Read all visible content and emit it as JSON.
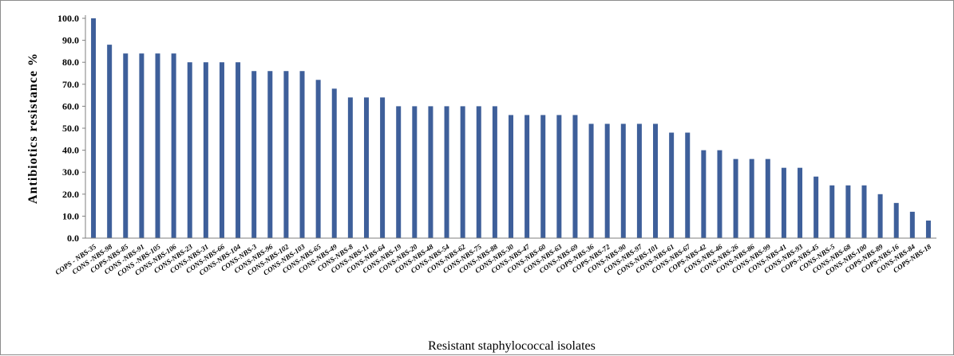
{
  "chart_data": {
    "type": "bar",
    "title": "",
    "xlabel": "Resistant staphylococcal isolates",
    "ylabel": "Antibiotics resistance %",
    "ylim": [
      0,
      100
    ],
    "yticks": [
      "0.0",
      "10.0",
      "20.0",
      "30.0",
      "40.0",
      "50.0",
      "60.0",
      "70.0",
      "80.0",
      "90.0",
      "100.0"
    ],
    "grid": false,
    "legend": "none",
    "bar_color": "#3e5f9a",
    "categories": [
      "COPS - NBS-35",
      "CONS -NBS-98",
      "COPS-NBS-85",
      "CONS -NBS-91",
      "CONS -NBS-105",
      "CONS-NBS-106",
      "CONS-NBS-23",
      "CONS-NBS-31",
      "CONS-NBS-66",
      "CONS-NBS-104",
      "CONS-NBS-3",
      "CONS-NBS-96",
      "CONS-NBS-102",
      "CONS-NBS-103",
      "CONS-NBS-65",
      "CONS-NBS-49",
      "CONS-NBS-8",
      "CONS-NBS-11",
      "CONS-NBS-64",
      "CONS-NBS-19",
      "CONS-NBS-20",
      "CONS-NBS-48",
      "CONS-NBS-54",
      "CONS-NBS-62",
      "CONS-NBS-75",
      "CONS-NBS-88",
      "CONS-NBS-30",
      "CONS-NBS-47",
      "CONS-NBS-60",
      "CONS-NBS-63",
      "CONS-NBS-69",
      "COPS-NBS-36",
      "COPS-NBS-72",
      "CONS-NBS-90",
      "CONS-NBS-97",
      "CONS-NBS-101",
      "CONS-NBS-61",
      "CONS-NBS-67",
      "COPS-NBS-42",
      "CONS-NBS-46",
      "CONS-NBS-26",
      "CONS-NBS-86",
      "CONS-NBS-99",
      "CONS-NBS-41",
      "CONS-NBS-93",
      "COPS-NBS-45",
      "CONS-NBS-5",
      "CONS-NBS-68",
      "CONS-NBS-100",
      "COPS-NBS-89",
      "COPS-NBS-16",
      "CONS-NBS-84",
      "COPS-NBS-18"
    ],
    "values": [
      100,
      88,
      84,
      84,
      84,
      84,
      80,
      80,
      80,
      80,
      76,
      76,
      76,
      76,
      72,
      68,
      64,
      64,
      64,
      60,
      60,
      60,
      60,
      60,
      60,
      60,
      56,
      56,
      56,
      56,
      56,
      52,
      52,
      52,
      52,
      52,
      48,
      48,
      40,
      40,
      36,
      36,
      36,
      32,
      32,
      28,
      24,
      24,
      24,
      20,
      16,
      12,
      8
    ]
  }
}
